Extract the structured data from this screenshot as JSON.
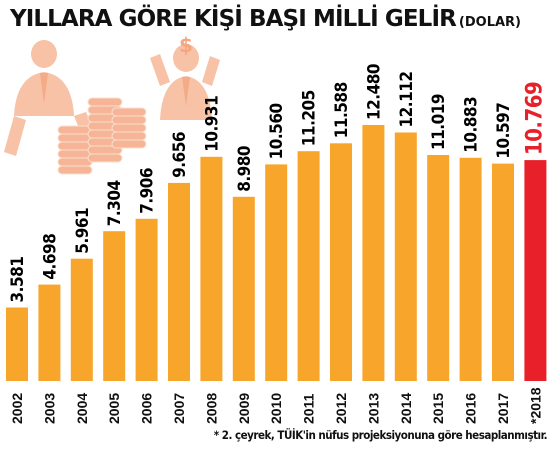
{
  "chart_data": {
    "type": "bar",
    "title": "YILLARA GÖRE KİŞİ BAŞI MİLLİ GELİR",
    "unit": "(DOLAR)",
    "categories": [
      "2002",
      "2003",
      "2004",
      "2005",
      "2006",
      "2007",
      "2008",
      "2009",
      "2010",
      "2011",
      "2012",
      "2013",
      "2014",
      "2015",
      "2016",
      "2017",
      "*2018"
    ],
    "values": [
      3581,
      4698,
      5961,
      7304,
      7906,
      9656,
      10931,
      8980,
      10560,
      11205,
      11588,
      12480,
      12112,
      11019,
      10883,
      10597,
      10769
    ],
    "labels": [
      "3.581",
      "4.698",
      "5.961",
      "7.304",
      "7.906",
      "9.656",
      "10.931",
      "8.980",
      "10.560",
      "11.205",
      "11.588",
      "12.480",
      "12.112",
      "11.019",
      "10.883",
      "10.597",
      "10.769"
    ],
    "highlight_index": 16,
    "colors": {
      "bar": "#f8a52c",
      "highlight": "#e8202a",
      "highlight_label": "#e8202a",
      "year_label": "#111111"
    },
    "footnote": "* 2. çeyrek, TÜİK'in nüfus projeksiyonuna göre hesaplanmıştır.",
    "grid": false,
    "legend": "none"
  },
  "illustration": [
    "person-icon",
    "coin-stacks-icon",
    "dollar-person-icon"
  ]
}
